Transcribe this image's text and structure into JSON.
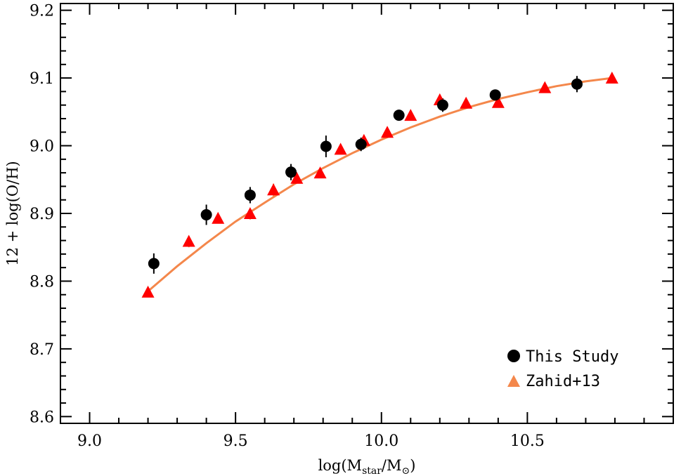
{
  "chart_data": {
    "type": "scatter",
    "title": "",
    "xlabel": {
      "prefix": "log(M",
      "sub1": "star",
      "mid": "/M",
      "sub2": "⊙",
      "suffix": ")"
    },
    "ylabel": "12 + log(O/H)",
    "xlim": [
      8.9,
      11.0
    ],
    "ylim": [
      8.59,
      9.21
    ],
    "xticks": [
      "9.0",
      "9.5",
      "10.0",
      "10.5"
    ],
    "xtick_values": [
      9.0,
      9.5,
      10.0,
      10.5
    ],
    "yticks": [
      "8.6",
      "8.7",
      "8.8",
      "8.9",
      "9.0",
      "9.1",
      "9.2"
    ],
    "ytick_values": [
      8.6,
      8.7,
      8.8,
      8.9,
      9.0,
      9.1,
      9.2
    ],
    "legend_position": "bottom-right",
    "grid": false,
    "series": [
      {
        "name": "This Study",
        "marker": "circle",
        "color": "#000000",
        "points": [
          {
            "x": 9.22,
            "y": 8.826,
            "err": 0.015
          },
          {
            "x": 9.4,
            "y": 8.898,
            "err": 0.015
          },
          {
            "x": 9.55,
            "y": 8.927,
            "err": 0.012
          },
          {
            "x": 9.69,
            "y": 8.961,
            "err": 0.012
          },
          {
            "x": 9.81,
            "y": 8.999,
            "err": 0.016
          },
          {
            "x": 9.93,
            "y": 9.002,
            "err": 0.01
          },
          {
            "x": 10.06,
            "y": 9.045,
            "err": 0.008
          },
          {
            "x": 10.21,
            "y": 9.06,
            "err": 0.01
          },
          {
            "x": 10.39,
            "y": 9.075,
            "err": 0.008
          },
          {
            "x": 10.67,
            "y": 9.091,
            "err": 0.012
          }
        ]
      },
      {
        "name": "Zahid+13",
        "marker": "triangle",
        "color": "#ff0000",
        "legend_color": "#f4874b",
        "points": [
          {
            "x": 9.2,
            "y": 8.783,
            "err": 0.006
          },
          {
            "x": 9.34,
            "y": 8.858,
            "err": 0.008
          },
          {
            "x": 9.44,
            "y": 8.892,
            "err": 0.006
          },
          {
            "x": 9.55,
            "y": 8.899,
            "err": 0.008
          },
          {
            "x": 9.63,
            "y": 8.934,
            "err": 0.01
          },
          {
            "x": 9.71,
            "y": 8.951,
            "err": 0.006
          },
          {
            "x": 9.79,
            "y": 8.959,
            "err": 0.005
          },
          {
            "x": 9.86,
            "y": 8.994,
            "err": 0.006
          },
          {
            "x": 9.94,
            "y": 9.007,
            "err": 0.005
          },
          {
            "x": 10.02,
            "y": 9.019,
            "err": 0.005
          },
          {
            "x": 10.1,
            "y": 9.044,
            "err": 0.005
          },
          {
            "x": 10.2,
            "y": 9.067,
            "err": 0.005
          },
          {
            "x": 10.29,
            "y": 9.062,
            "err": 0.005
          },
          {
            "x": 10.4,
            "y": 9.063,
            "err": 0.005
          },
          {
            "x": 10.56,
            "y": 9.085,
            "err": 0.005
          },
          {
            "x": 10.79,
            "y": 9.099,
            "err": 0.005
          }
        ]
      }
    ],
    "fit_curve": {
      "color": "#f4874b",
      "x_range": [
        9.2,
        10.79
      ],
      "points": [
        [
          9.2,
          8.785
        ],
        [
          9.3,
          8.822
        ],
        [
          9.4,
          8.856
        ],
        [
          9.5,
          8.888
        ],
        [
          9.6,
          8.916
        ],
        [
          9.7,
          8.943
        ],
        [
          9.8,
          8.967
        ],
        [
          9.9,
          8.989
        ],
        [
          10.0,
          9.009
        ],
        [
          10.1,
          9.027
        ],
        [
          10.2,
          9.043
        ],
        [
          10.3,
          9.057
        ],
        [
          10.4,
          9.069
        ],
        [
          10.5,
          9.079
        ],
        [
          10.6,
          9.088
        ],
        [
          10.7,
          9.095
        ],
        [
          10.79,
          9.1
        ]
      ]
    }
  }
}
